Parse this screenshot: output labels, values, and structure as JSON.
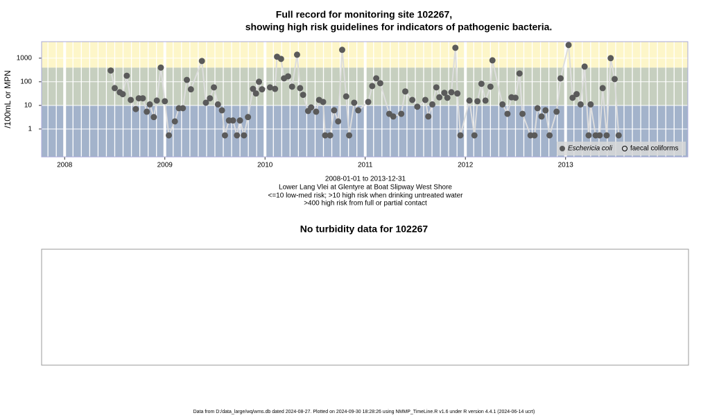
{
  "chart_data": [
    {
      "type": "scatter",
      "title": [
        "Full record for monitoring site 102267,",
        "showing high risk guidelines for indicators of pathogenic bacteria."
      ],
      "notes": [
        "2008-01-01 to 2013-12-31",
        "Lower Lang Vlei at Glentyre at Boat Slipway West Shore",
        "<=10 low-med risk; >10 high risk when drinking untreated water",
        ">400 high risk from full or partial contact"
      ],
      "ylabel": "/100mL or MPN",
      "log_scale": true,
      "xlim": [
        2007.77,
        2014.22
      ],
      "xticks": [
        2008,
        2009,
        2010,
        2011,
        2012,
        2013
      ],
      "ylim": [
        0.066,
        5000
      ],
      "yticks": [
        1,
        10,
        100,
        1000
      ],
      "bands": {
        "thresholds": [
          10,
          400
        ],
        "colors": [
          "#a3b3cb",
          "#c6cfbf",
          "#fdf6c9"
        ]
      },
      "legend": "bottom-right",
      "series": [
        {
          "name": "Eschericia coli",
          "color": "#5a5a5a",
          "line_color": "#dddddd",
          "marker": "filled",
          "x": [
            2008.46,
            2008.5,
            2008.55,
            2008.58,
            2008.62,
            2008.66,
            2008.71,
            2008.74,
            2008.78,
            2008.82,
            2008.85,
            2008.89,
            2008.92,
            2008.96,
            2009.0,
            2009.04,
            2009.1,
            2009.14,
            2009.18,
            2009.22,
            2009.26,
            2009.37,
            2009.41,
            2009.45,
            2009.49,
            2009.53,
            2009.57,
            2009.6,
            2009.64,
            2009.68,
            2009.72,
            2009.75,
            2009.79,
            2009.83,
            2009.88,
            2009.91,
            2009.94,
            2009.97,
            2010.05,
            2010.1,
            2010.12,
            2010.16,
            2010.19,
            2010.23,
            2010.27,
            2010.32,
            2010.35,
            2010.38,
            2010.43,
            2010.46,
            2010.51,
            2010.54,
            2010.58,
            2010.6,
            2010.65,
            2010.69,
            2010.73,
            2010.77,
            2010.81,
            2010.84,
            2010.89,
            2010.93,
            2011.03,
            2011.07,
            2011.11,
            2011.15,
            2011.24,
            2011.28,
            2011.36,
            2011.4,
            2011.47,
            2011.52,
            2011.6,
            2011.63,
            2011.67,
            2011.71,
            2011.74,
            2011.79,
            2011.82,
            2011.86,
            2011.9,
            2011.92,
            2011.95,
            2012.04,
            2012.09,
            2012.12,
            2012.16,
            2012.2,
            2012.25,
            2012.27,
            2012.37,
            2012.42,
            2012.46,
            2012.5,
            2012.54,
            2012.57,
            2012.65,
            2012.69,
            2012.72,
            2012.76,
            2012.8,
            2012.84,
            2012.91,
            2012.95,
            2013.03,
            2013.07,
            2013.11,
            2013.15,
            2013.19,
            2013.23,
            2013.25,
            2013.3,
            2013.34,
            2013.37,
            2013.41,
            2013.45,
            2013.49,
            2013.53
          ],
          "values": [
            300,
            54,
            36,
            30,
            180,
            17,
            7,
            20,
            20,
            5.4,
            11,
            3.2,
            16,
            400,
            15,
            0.54,
            2.1,
            7.6,
            7.6,
            120,
            48,
            760,
            13,
            20,
            58,
            11,
            6.2,
            0.54,
            2.3,
            2.3,
            0.54,
            2.3,
            0.54,
            3.2,
            50,
            32,
            100,
            48,
            58,
            50,
            1150,
            930,
            140,
            170,
            62,
            1400,
            54,
            28,
            5.8,
            8.2,
            5.4,
            17,
            14,
            0.54,
            0.54,
            6.2,
            2.1,
            2250,
            24,
            0.54,
            13,
            6.2,
            14,
            66,
            140,
            87,
            4.4,
            3.4,
            4.4,
            39,
            17,
            8.8,
            17,
            3.4,
            11,
            58,
            22,
            34,
            21,
            36,
            2750,
            32,
            0.54,
            16,
            0.54,
            15,
            82,
            16,
            62,
            810,
            11,
            4.4,
            22,
            21,
            225,
            4.4,
            0.54,
            0.54,
            7.6,
            3.4,
            6.2,
            0.54,
            5.4,
            140,
            3600,
            21,
            30,
            11,
            440,
            0.54,
            11,
            0.54,
            0.54,
            54,
            0.54,
            1000,
            130,
            0.54
          ]
        },
        {
          "name": "faecal coliforms",
          "color": "#000000",
          "marker": "open",
          "x": [],
          "values": []
        }
      ]
    },
    {
      "type": "empty",
      "title": "No turbidity data for 102267"
    }
  ],
  "footer": "Data from D:/data_large/wq/wms.db dated 2024-08-27. Plotted on 2024-09-30 18:28:26 using NMMP_TimeLine.R v1.6 under R version 4.4.1 (2024-06-14 ucrt)"
}
